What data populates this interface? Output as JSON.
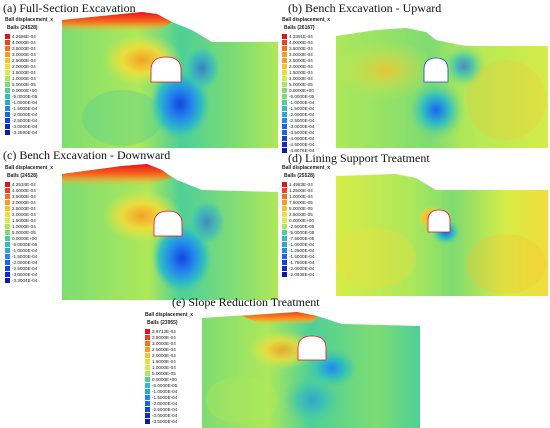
{
  "panels": [
    {
      "title": "(a) Full-Section Excavation",
      "legend": {
        "header": "Ball displacement_x",
        "count": "Balls (24528)",
        "labels": [
          "4.2686E-04",
          "4.0000E-04",
          "3.5000E-04",
          "3.0000E-04",
          "2.5000E-04",
          "2.0000E-04",
          "1.5000E-04",
          "1.0000E-04",
          "5.0000E-05",
          "0.0000E+00",
          "-5.0000E-05",
          "-1.0000E-04",
          "-1.5000E-04",
          "-2.0000E-04",
          "-2.5000E-04",
          "-3.0000E-04",
          "-3.2590E-04"
        ]
      }
    },
    {
      "title": "(b) Bench Excavation - Upward",
      "legend": {
        "header": "Ball displacement_x",
        "count": "Balls (26167)",
        "labels": [
          "4.3391E-04",
          "4.0000E-04",
          "3.5000E-04",
          "3.0000E-04",
          "2.5000E-04",
          "2.0000E-04",
          "1.5000E-04",
          "1.0000E-04",
          "5.0000E-05",
          "0.0000E+00",
          "-5.0000E-05",
          "-1.0000E-04",
          "-1.5000E-04",
          "-2.0000E-04",
          "-2.5000E-04",
          "-3.0000E-04",
          "-3.5000E-04",
          "-4.0000E-04",
          "-4.5000E-04",
          "-4.8076E-04"
        ]
      }
    },
    {
      "title": "(c) Bench Excavation - Downward",
      "legend": {
        "header": "Ball displacement_x",
        "count": "Balls (24528)",
        "labels": [
          "4.2534E-04",
          "4.0000E-04",
          "3.5000E-04",
          "3.0000E-04",
          "2.5000E-04",
          "2.0000E-04",
          "1.5000E-04",
          "1.0000E-04",
          "5.0000E-05",
          "0.0000E+00",
          "-5.0000E-05",
          "-1.0000E-04",
          "-1.5000E-04",
          "-2.0000E-04",
          "-2.5000E-04",
          "-3.0000E-04",
          "-3.3004E-04"
        ]
      }
    },
    {
      "title": "(d) Lining Support Treatment",
      "legend": {
        "header": "Ball displacement_x",
        "count": "Balls (25528)",
        "labels": [
          "1.4983E-04",
          "1.2500E-04",
          "1.0000E-04",
          "7.5000E-05",
          "5.0000E-05",
          "2.5000E-05",
          "0.0000E+00",
          "-2.5000E-05",
          "-5.0000E-05",
          "-7.5000E-05",
          "-1.0000E-04",
          "-1.2500E-04",
          "-1.5000E-04",
          "-1.7500E-04",
          "-2.0000E-04",
          "-2.0938E-04"
        ]
      }
    },
    {
      "title": "(e) Slope Reduction Treatment",
      "legend": {
        "header": "Ball displacement_x",
        "count": "Balls (23955)",
        "labels": [
          "3.6712E-04",
          "3.5000E-04",
          "3.0000E-04",
          "2.5000E-04",
          "2.0000E-04",
          "1.5000E-04",
          "1.0000E-04",
          "5.0000E-05",
          "0.0000E+00",
          "-5.0000E-05",
          "-1.0000E-04",
          "-1.5000E-04",
          "-2.0000E-04",
          "-2.5000E-04",
          "-3.0000E-04",
          "-3.5000E-04"
        ]
      }
    }
  ],
  "colorscale": [
    "#e8101a",
    "#f2401a",
    "#f7701e",
    "#fb9a22",
    "#fcbf2c",
    "#f2dc3a",
    "#d6ec48",
    "#aee85a",
    "#7edc72",
    "#4ecf98",
    "#32bfc0",
    "#2aa6dd",
    "#2287ee",
    "#1a64f0",
    "#1443e0",
    "#0f2bc8",
    "#0b1aa8"
  ]
}
